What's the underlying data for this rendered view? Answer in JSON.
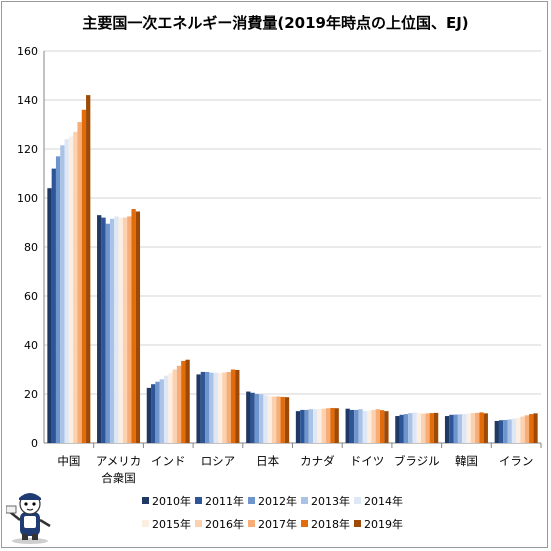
{
  "chart_data": {
    "type": "bar",
    "title": "主要国一次エネルギー消費量(2019年時点の上位国、EJ)",
    "categories": [
      [
        "中国"
      ],
      [
        "アメリカ",
        "合衆国"
      ],
      [
        "インド"
      ],
      [
        "ロシア"
      ],
      [
        "日本"
      ],
      [
        "カナダ"
      ],
      [
        "ドイツ"
      ],
      [
        "ブラジル"
      ],
      [
        "韓国"
      ],
      [
        "イラン"
      ]
    ],
    "series": [
      {
        "name": "2010年",
        "color": "#1f3864",
        "values": [
          104,
          93,
          22.5,
          28,
          21,
          13,
          14,
          11,
          11,
          9
        ]
      },
      {
        "name": "2011年",
        "color": "#2e5597",
        "values": [
          112,
          92,
          24,
          29,
          20.5,
          13.5,
          13.5,
          11.5,
          11.5,
          9.3
        ]
      },
      {
        "name": "2012年",
        "color": "#6f96cc",
        "values": [
          117,
          89.5,
          25,
          29,
          20,
          13.5,
          13.5,
          11.8,
          11.6,
          9.4
        ]
      },
      {
        "name": "2013年",
        "color": "#a9c2e6",
        "values": [
          121.5,
          91.5,
          26,
          28.7,
          19.8,
          13.8,
          13.8,
          12.2,
          11.7,
          9.6
        ]
      },
      {
        "name": "2014年",
        "color": "#dde7f5",
        "values": [
          124,
          92.5,
          27.5,
          28.7,
          19.5,
          13.8,
          13.1,
          12.5,
          11.8,
          10
        ]
      },
      {
        "name": "2015年",
        "color": "#fdeee2",
        "values": [
          125,
          92,
          28.5,
          28.5,
          19.2,
          13.9,
          13.2,
          12.2,
          12,
          10.3
        ]
      },
      {
        "name": "2016年",
        "color": "#fbd1b0",
        "values": [
          127,
          92,
          30,
          28.8,
          19,
          14,
          13.5,
          12,
          12.2,
          10.8
        ]
      },
      {
        "name": "2017年",
        "color": "#f6ad77",
        "values": [
          131,
          92.5,
          31.5,
          29,
          19,
          14.2,
          13.8,
          12.1,
          12.3,
          11.3
        ]
      },
      {
        "name": "2018年",
        "color": "#e36c0a",
        "values": [
          136,
          95.5,
          33.5,
          30,
          18.8,
          14.3,
          13.4,
          12.2,
          12.5,
          11.8
        ]
      },
      {
        "name": "2019年",
        "color": "#9e4a06",
        "values": [
          142,
          94.5,
          34,
          29.8,
          18.7,
          14.2,
          13,
          12.3,
          12.1,
          12.1
        ]
      }
    ],
    "ylim": [
      0,
      160
    ],
    "yticks": [
      0,
      20,
      40,
      60,
      80,
      100,
      120,
      140,
      160
    ],
    "grid": true,
    "legend_position": "bottom"
  },
  "colors": {
    "grid": "#d4d4d4",
    "axis": "#868686"
  }
}
